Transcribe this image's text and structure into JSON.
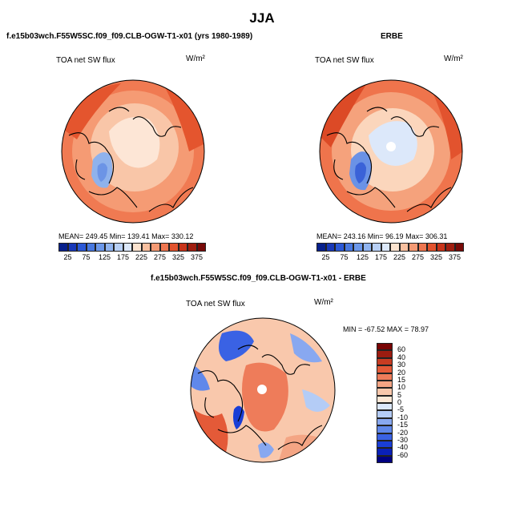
{
  "title": "JJA",
  "panel_left": {
    "subtitle": "f.e15b03wch.F55W5SC.f09_f09.CLB-OGW-T1-x01 (yrs 1980-1989)",
    "variable": "TOA net SW flux",
    "units": "W/m²",
    "stats": "MEAN= 249.45   Min= 139.41   Max= 330.12"
  },
  "panel_right": {
    "subtitle": "ERBE",
    "variable": "TOA net SW flux",
    "units": "W/m²",
    "stats": "MEAN= 243.16   Min=  96.19   Max= 306.31"
  },
  "panel_diff": {
    "subtitle": "f.e15b03wch.F55W5SC.f09_f09.CLB-OGW-T1-x01 - ERBE",
    "variable": "TOA net SW flux",
    "units": "W/m²",
    "stats": "MIN = -67.52  MAX =  78.97"
  },
  "colors": {
    "abs_scale": [
      "#08208c",
      "#1838b8",
      "#2b58d6",
      "#4878e0",
      "#6c98ea",
      "#90b4f0",
      "#b8d0f6",
      "#dce8fa",
      "#fbe3cf",
      "#f8c0a0",
      "#f49a74",
      "#ee7650",
      "#e2532e",
      "#c8341a",
      "#a01e10",
      "#780a08"
    ],
    "diff_scale": [
      "#000080",
      "#0a20b8",
      "#1a3ed6",
      "#3a62e4",
      "#6088ea",
      "#88a8f0",
      "#b4ccf6",
      "#dce8fb",
      "#fde8d6",
      "#f9c8ac",
      "#f4a584",
      "#ee7c5a",
      "#e45a38",
      "#c83c22",
      "#9c1c10",
      "#780404"
    ],
    "ocean_light": "#f3a07c",
    "coast": "#000000"
  },
  "chart_data": [
    {
      "type": "heatmap",
      "projection": "north-polar-stereographic",
      "title": "TOA net SW flux",
      "units": "W/m²",
      "mean": 249.45,
      "min": 139.41,
      "max": 330.12,
      "colorbar_ticks": [
        "25",
        "75",
        "125",
        "175",
        "225",
        "275",
        "325",
        "375"
      ],
      "colorbar_levels": [
        25,
        50,
        75,
        100,
        125,
        150,
        175,
        200,
        225,
        250,
        275,
        300,
        325,
        350,
        375
      ]
    },
    {
      "type": "heatmap",
      "projection": "north-polar-stereographic",
      "title": "TOA net SW flux",
      "units": "W/m²",
      "mean": 243.16,
      "min": 96.19,
      "max": 306.31,
      "colorbar_ticks": [
        "25",
        "75",
        "125",
        "175",
        "225",
        "275",
        "325",
        "375"
      ],
      "colorbar_levels": [
        25,
        50,
        75,
        100,
        125,
        150,
        175,
        200,
        225,
        250,
        275,
        300,
        325,
        350,
        375
      ]
    },
    {
      "type": "heatmap",
      "projection": "north-polar-stereographic",
      "title": "TOA net SW flux",
      "units": "W/m²",
      "min": -67.52,
      "max": 78.97,
      "colorbar_ticks": [
        "60",
        "40",
        "30",
        "20",
        "15",
        "10",
        "5",
        "0",
        "-5",
        "-10",
        "-15",
        "-20",
        "-30",
        "-40",
        "-60"
      ]
    }
  ]
}
